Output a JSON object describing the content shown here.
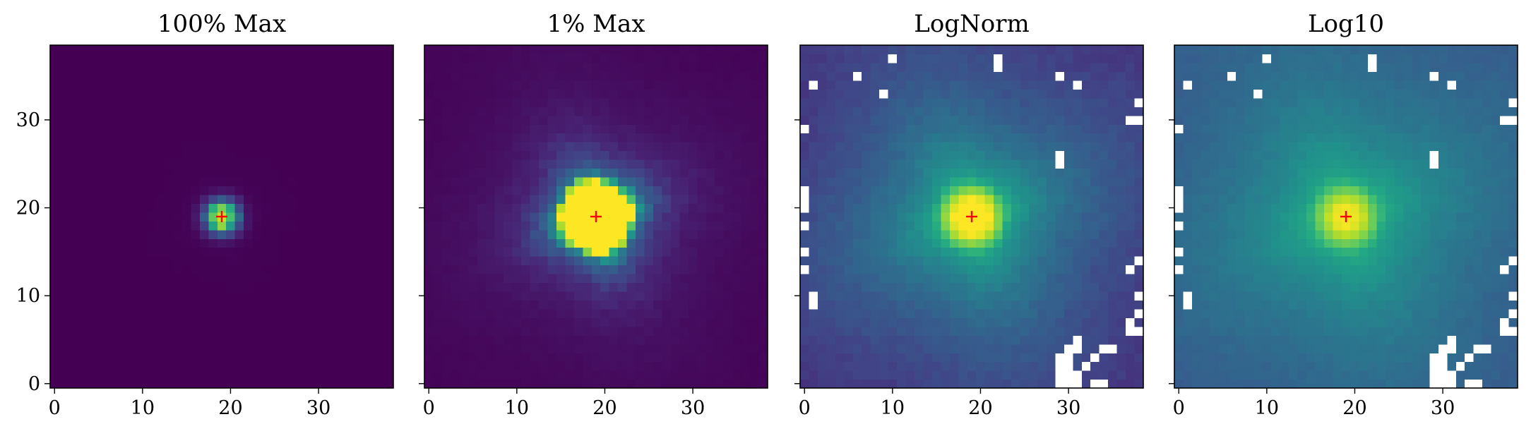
{
  "figure": {
    "background": "#ffffff"
  },
  "chart_data": [
    {
      "type": "heatmap",
      "title": "100% Max",
      "colormap": "viridis",
      "grid_size": 39,
      "xlim": [
        -0.5,
        38.5
      ],
      "ylim": [
        -0.5,
        38.5
      ],
      "xticks": [
        0,
        10,
        20,
        30
      ],
      "yticks": [
        0,
        10,
        20,
        30
      ],
      "show_yticklabels": true,
      "model": "psf",
      "scale": "linear",
      "clip": 1.0,
      "center_marker": {
        "x": 19,
        "y": 19,
        "color": "#ff0000",
        "symbol": "+"
      },
      "masked_pixels": []
    },
    {
      "type": "heatmap",
      "title": "1% Max",
      "colormap": "viridis",
      "grid_size": 39,
      "xlim": [
        -0.5,
        38.5
      ],
      "ylim": [
        -0.5,
        38.5
      ],
      "xticks": [
        0,
        10,
        20,
        30
      ],
      "yticks": [
        0,
        10,
        20,
        30
      ],
      "show_yticklabels": false,
      "model": "psf",
      "scale": "linear",
      "clip": 0.01,
      "center_marker": {
        "x": 19,
        "y": 19,
        "color": "#ff0000",
        "symbol": "+"
      },
      "masked_pixels": []
    },
    {
      "type": "heatmap",
      "title": "LogNorm",
      "colormap": "viridis",
      "grid_size": 39,
      "xlim": [
        -0.5,
        38.5
      ],
      "ylim": [
        -0.5,
        38.5
      ],
      "xticks": [
        0,
        10,
        20,
        30
      ],
      "yticks": [
        0,
        10,
        20,
        30
      ],
      "show_yticklabels": false,
      "model": "psf",
      "scale": "log",
      "log_floor": 3e-05,
      "log_ceiling": 0.3,
      "center_marker": {
        "x": 19,
        "y": 19,
        "color": "#ff0000",
        "symbol": "+"
      },
      "masked_color": "#ffffff",
      "masked_pixels": [
        [
          10,
          37
        ],
        [
          22,
          37
        ],
        [
          22,
          36
        ],
        [
          29,
          35
        ],
        [
          1,
          34
        ],
        [
          6,
          35
        ],
        [
          31,
          34
        ],
        [
          9,
          33
        ],
        [
          38,
          32
        ],
        [
          38,
          30
        ],
        [
          37,
          30
        ],
        [
          0,
          29
        ],
        [
          29,
          26
        ],
        [
          29,
          25
        ],
        [
          0,
          22
        ],
        [
          0,
          21
        ],
        [
          0,
          20
        ],
        [
          0,
          18
        ],
        [
          0,
          15
        ],
        [
          0,
          13
        ],
        [
          38,
          14
        ],
        [
          37,
          13
        ],
        [
          1,
          10
        ],
        [
          1,
          9
        ],
        [
          38,
          10
        ],
        [
          38,
          8
        ],
        [
          38,
          6
        ],
        [
          37,
          6
        ],
        [
          37,
          7
        ],
        [
          34,
          4
        ],
        [
          35,
          4
        ],
        [
          33,
          3
        ],
        [
          32,
          2
        ],
        [
          31,
          1
        ],
        [
          33,
          0
        ],
        [
          34,
          0
        ],
        [
          29,
          0
        ],
        [
          30,
          0
        ],
        [
          31,
          0
        ],
        [
          29,
          1
        ],
        [
          30,
          1
        ],
        [
          29,
          2
        ],
        [
          30,
          2
        ],
        [
          29,
          3
        ],
        [
          30,
          3
        ],
        [
          30,
          4
        ],
        [
          31,
          5
        ],
        [
          31,
          4
        ]
      ]
    },
    {
      "type": "heatmap",
      "title": "Log10",
      "colormap": "viridis",
      "grid_size": 39,
      "xlim": [
        -0.5,
        38.5
      ],
      "ylim": [
        -0.5,
        38.5
      ],
      "xticks": [
        0,
        10,
        20,
        30
      ],
      "yticks": [
        0,
        10,
        20,
        30
      ],
      "show_yticklabels": false,
      "model": "psf",
      "scale": "log",
      "log_floor": 3e-06,
      "log_ceiling": 1.0,
      "center_marker": {
        "x": 19,
        "y": 19,
        "color": "#ff0000",
        "symbol": "+"
      },
      "masked_color": "#ffffff",
      "masked_pixels": [
        [
          10,
          37
        ],
        [
          22,
          37
        ],
        [
          22,
          36
        ],
        [
          29,
          35
        ],
        [
          1,
          34
        ],
        [
          6,
          35
        ],
        [
          31,
          34
        ],
        [
          9,
          33
        ],
        [
          38,
          32
        ],
        [
          38,
          30
        ],
        [
          37,
          30
        ],
        [
          0,
          29
        ],
        [
          29,
          26
        ],
        [
          29,
          25
        ],
        [
          0,
          22
        ],
        [
          0,
          21
        ],
        [
          0,
          20
        ],
        [
          0,
          18
        ],
        [
          0,
          15
        ],
        [
          0,
          13
        ],
        [
          38,
          14
        ],
        [
          37,
          13
        ],
        [
          1,
          10
        ],
        [
          1,
          9
        ],
        [
          38,
          10
        ],
        [
          38,
          8
        ],
        [
          38,
          6
        ],
        [
          37,
          6
        ],
        [
          37,
          7
        ],
        [
          34,
          4
        ],
        [
          35,
          4
        ],
        [
          33,
          3
        ],
        [
          32,
          2
        ],
        [
          31,
          1
        ],
        [
          33,
          0
        ],
        [
          34,
          0
        ],
        [
          29,
          0
        ],
        [
          30,
          0
        ],
        [
          31,
          0
        ],
        [
          29,
          1
        ],
        [
          30,
          1
        ],
        [
          29,
          2
        ],
        [
          30,
          2
        ],
        [
          29,
          3
        ],
        [
          30,
          3
        ],
        [
          30,
          4
        ],
        [
          31,
          5
        ],
        [
          31,
          4
        ]
      ]
    }
  ]
}
